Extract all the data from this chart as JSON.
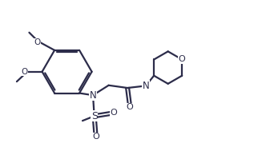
{
  "bg_color": "#ffffff",
  "line_color": "#2c2c4a",
  "line_width": 1.6,
  "figsize": [
    3.27,
    1.99
  ],
  "dpi": 100,
  "xlim": [
    0,
    10
  ],
  "ylim": [
    0,
    6.1
  ]
}
